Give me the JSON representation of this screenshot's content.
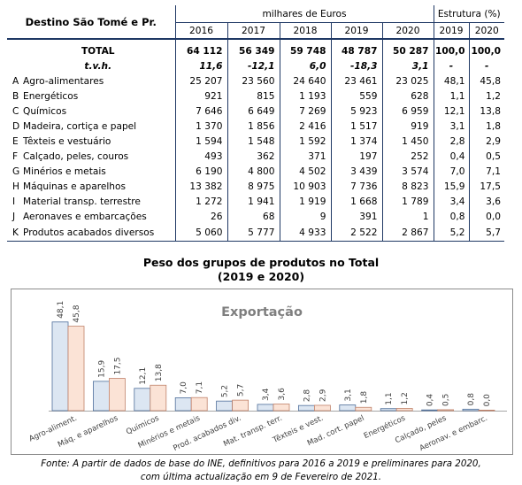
{
  "table": {
    "header": {
      "destination": "Destino São Tomé e Pr.",
      "unit_group": "milhares de Euros",
      "structure_group": "Estrutura (%)",
      "years": [
        "2016",
        "2017",
        "2018",
        "2019",
        "2020"
      ],
      "structure_years": [
        "2019",
        "2020"
      ]
    },
    "total": {
      "label": "TOTAL",
      "values": [
        "64 112",
        "56 349",
        "59 748",
        "48 787",
        "50 287"
      ],
      "structure": [
        "100,0",
        "100,0"
      ]
    },
    "tvh": {
      "label": "t.v.h.",
      "values": [
        "11,6",
        "-12,1",
        "6,0",
        "-18,3",
        "3,1"
      ],
      "structure": [
        "-",
        "-"
      ]
    },
    "rows": [
      {
        "code": "A",
        "label": "Agro-alimentares",
        "values": [
          "25 207",
          "23 560",
          "24 640",
          "23 461",
          "23 025"
        ],
        "structure": [
          "48,1",
          "45,8"
        ]
      },
      {
        "code": "B",
        "label": "Energéticos",
        "values": [
          "921",
          "815",
          "1 193",
          "559",
          "628"
        ],
        "structure": [
          "1,1",
          "1,2"
        ]
      },
      {
        "code": "C",
        "label": "Químicos",
        "values": [
          "7 646",
          "6 649",
          "7 269",
          "5 923",
          "6 959"
        ],
        "structure": [
          "12,1",
          "13,8"
        ]
      },
      {
        "code": "D",
        "label": "Madeira, cortiça e papel",
        "values": [
          "1 370",
          "1 856",
          "2 416",
          "1 517",
          "919"
        ],
        "structure": [
          "3,1",
          "1,8"
        ]
      },
      {
        "code": "E",
        "label": "Têxteis e vestuário",
        "values": [
          "1 594",
          "1 548",
          "1 592",
          "1 374",
          "1 450"
        ],
        "structure": [
          "2,8",
          "2,9"
        ]
      },
      {
        "code": "F",
        "label": "Calçado, peles, couros",
        "values": [
          "493",
          "362",
          "371",
          "197",
          "252"
        ],
        "structure": [
          "0,4",
          "0,5"
        ]
      },
      {
        "code": "G",
        "label": "Minérios e metais",
        "values": [
          "6 190",
          "4 800",
          "4 502",
          "3 439",
          "3 574"
        ],
        "structure": [
          "7,0",
          "7,1"
        ]
      },
      {
        "code": "H",
        "label": "Máquinas e aparelhos",
        "values": [
          "13 382",
          "8 975",
          "10 903",
          "7 736",
          "8 823"
        ],
        "structure": [
          "15,9",
          "17,5"
        ]
      },
      {
        "code": "I",
        "label": "Material transp. terrestre",
        "values": [
          "1 272",
          "1 941",
          "1 919",
          "1 668",
          "1 789"
        ],
        "structure": [
          "3,4",
          "3,6"
        ]
      },
      {
        "code": "J",
        "label": "Aeronaves e embarcações",
        "values": [
          "26",
          "68",
          "9",
          "391",
          "1"
        ],
        "structure": [
          "0,8",
          "0,0"
        ]
      },
      {
        "code": "K",
        "label": "Produtos acabados diversos",
        "values": [
          "5 060",
          "5 777",
          "4 933",
          "2 522",
          "2 867"
        ],
        "structure": [
          "5,2",
          "5,7"
        ]
      }
    ]
  },
  "chart_title_line1": "Peso dos grupos de produtos no Total",
  "chart_title_line2": "(2019 e 2020)",
  "chart_data": {
    "type": "bar",
    "title": "Exportação",
    "categories": [
      "Agro-aliment.",
      "Máq. e aparelhos",
      "Químicos",
      "Minérios e metais",
      "Prod. acabados div.",
      "Mat. transp. terr.",
      "Têxteis e vest.",
      "Mad. cort. papel",
      "Energéticos",
      "Calçado, peles",
      "Aeronav. e embarc."
    ],
    "series": [
      {
        "values": [
          48.1,
          15.9,
          12.1,
          7.0,
          5.2,
          3.4,
          2.8,
          3.1,
          1.1,
          0.4,
          0.8
        ],
        "labels": [
          "48,1",
          "15,9",
          "12,1",
          "7,0",
          "5,2",
          "3,4",
          "2,8",
          "3,1",
          "1,1",
          "0,4",
          "0,8"
        ],
        "color": "#dce6f2",
        "stroke": "#4f6f9a"
      },
      {
        "values": [
          45.8,
          17.5,
          13.8,
          7.1,
          5.7,
          3.6,
          2.9,
          1.8,
          1.2,
          0.5,
          0.0
        ],
        "labels": [
          "45,8",
          "17,5",
          "13,8",
          "7,1",
          "5,7",
          "3,6",
          "2,9",
          "1,8",
          "1,2",
          "0,5",
          "0,0"
        ],
        "color": "#fbe3d6",
        "stroke": "#c0826a"
      }
    ],
    "ylim": [
      0,
      60
    ],
    "legend": "none",
    "grid": false
  },
  "source_line1": "Fonte: A partir de dados de base do INE, definitivos para 2016 a 2019 e preliminares para 2020,",
  "source_line2": "com última actualização em 9 de Fevereiro de 2021."
}
